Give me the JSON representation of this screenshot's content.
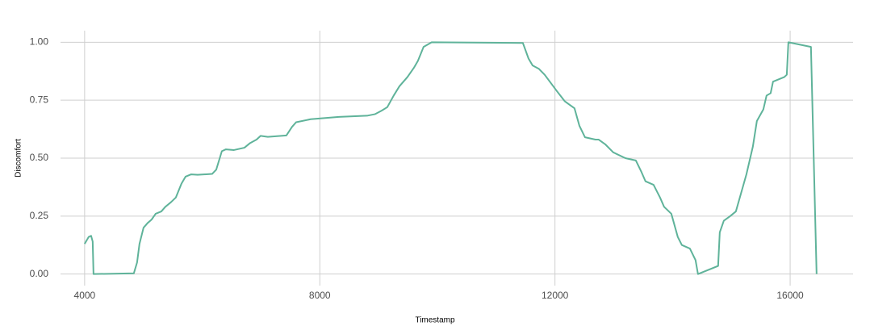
{
  "chart_data": {
    "type": "line",
    "x_label": "Timestamp",
    "y_label": "Discomfort",
    "xlim": [
      3590,
      17070
    ],
    "ylim": [
      -0.05,
      1.05
    ],
    "xticks": [
      4000,
      8000,
      12000,
      16000
    ],
    "yticks": [
      {
        "value": 0,
        "label": "0.00"
      },
      {
        "value": 0.25,
        "label": "0.25"
      },
      {
        "value": 0.5,
        "label": "0.50"
      },
      {
        "value": 0.75,
        "label": "0.75"
      },
      {
        "value": 1,
        "label": "1.00"
      }
    ],
    "grid": true,
    "series": [
      {
        "color": "#5fb39a",
        "x": [
          4000,
          4069,
          4110,
          4137,
          4151,
          4837,
          4892,
          4933,
          5002,
          5071,
          5139,
          5208,
          5304,
          5373,
          5469,
          5551,
          5647,
          5716,
          5812,
          5922,
          6169,
          6238,
          6334,
          6403,
          6540,
          6718,
          6814,
          6924,
          6993,
          7116,
          7432,
          7528,
          7597,
          7844,
          8324,
          8804,
          8942,
          9052,
          9148,
          9257,
          9354,
          9491,
          9601,
          9669,
          9765,
          9903,
          11454,
          11550,
          11619,
          11728,
          11824,
          12030,
          12168,
          12332,
          12415,
          12511,
          12689,
          12744,
          12854,
          12991,
          13197,
          13375,
          13471,
          13540,
          13677,
          13787,
          13856,
          13979,
          14089,
          14158,
          14295,
          14391,
          14432,
          14775,
          14803,
          14872,
          14981,
          15077,
          15256,
          15366,
          15434,
          15544,
          15599,
          15668,
          15709,
          15902,
          15943,
          15970,
          16354,
          16450
        ],
        "values": [
          0.13,
          0.16,
          0.165,
          0.14,
          0,
          0.003,
          0.05,
          0.13,
          0.2,
          0.22,
          0.235,
          0.26,
          0.27,
          0.29,
          0.31,
          0.33,
          0.39,
          0.42,
          0.43,
          0.428,
          0.432,
          0.45,
          0.53,
          0.538,
          0.535,
          0.545,
          0.565,
          0.58,
          0.596,
          0.592,
          0.598,
          0.635,
          0.655,
          0.668,
          0.678,
          0.683,
          0.69,
          0.705,
          0.72,
          0.77,
          0.81,
          0.85,
          0.89,
          0.92,
          0.98,
          1.0,
          0.997,
          0.93,
          0.9,
          0.885,
          0.86,
          0.79,
          0.745,
          0.715,
          0.64,
          0.59,
          0.58,
          0.58,
          0.56,
          0.525,
          0.5,
          0.49,
          0.44,
          0.4,
          0.385,
          0.33,
          0.29,
          0.26,
          0.16,
          0.125,
          0.11,
          0.06,
          0,
          0.035,
          0.18,
          0.23,
          0.25,
          0.27,
          0.43,
          0.55,
          0.66,
          0.71,
          0.77,
          0.78,
          0.83,
          0.85,
          0.86,
          1.0,
          0.98,
          0
        ]
      }
    ]
  }
}
